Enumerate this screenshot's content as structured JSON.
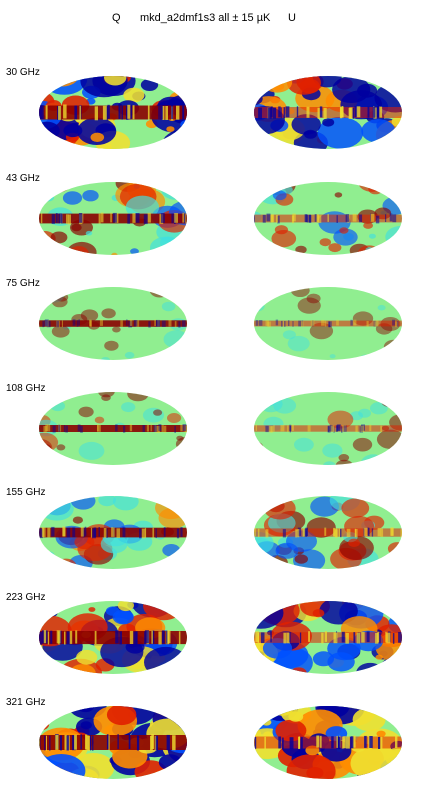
{
  "header": {
    "q_label": "Q",
    "title": "mkd_a2dmf1s3 all ± 15 µK",
    "u_label": "U"
  },
  "colors": {
    "dark_red": "#8b0000",
    "red": "#e02000",
    "orange": "#ff8c00",
    "yellow": "#f0e030",
    "green": "#90ee90",
    "cyan": "#40e0e0",
    "blue": "#0050ff",
    "dark_blue": "#0000a0"
  },
  "rows": [
    {
      "freq": "30 GHz",
      "q_intensity": 0.95,
      "u_intensity": 0.9,
      "band": 0.95
    },
    {
      "freq": "43 GHz",
      "q_intensity": 0.6,
      "u_intensity": 0.5,
      "band": 0.8
    },
    {
      "freq": "75 GHz",
      "q_intensity": 0.25,
      "u_intensity": 0.2,
      "band": 0.6
    },
    {
      "freq": "108 GHz",
      "q_intensity": 0.3,
      "u_intensity": 0.3,
      "band": 0.65
    },
    {
      "freq": "155 GHz",
      "q_intensity": 0.55,
      "u_intensity": 0.55,
      "band": 0.85
    },
    {
      "freq": "223 GHz",
      "q_intensity": 0.85,
      "u_intensity": 0.85,
      "band": 0.95
    },
    {
      "freq": "321 GHz",
      "q_intensity": 1.0,
      "u_intensity": 1.0,
      "band": 1.0
    }
  ]
}
